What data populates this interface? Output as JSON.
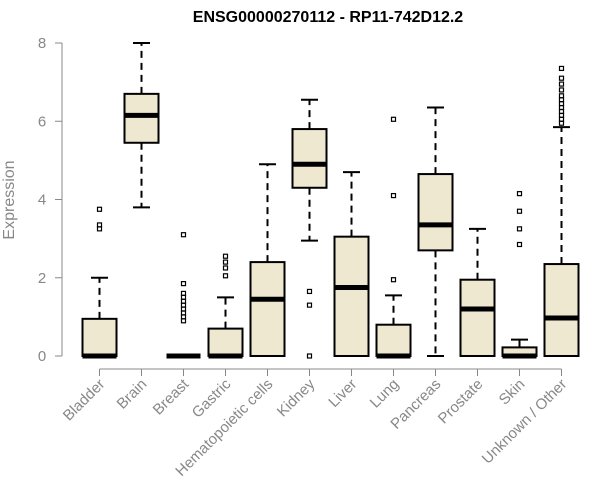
{
  "chart_data": {
    "type": "boxplot",
    "title": "ENSG00000270112 - RP11-742D12.2",
    "xlabel": "",
    "ylabel": "Expression",
    "ylim": [
      0,
      8
    ],
    "yticks": [
      0,
      2,
      4,
      6,
      8
    ],
    "grid": false,
    "colors": {
      "box_fill": "#efe8d0",
      "stroke": "#000000",
      "axis": "#888888"
    },
    "categories": [
      "Bladder",
      "Brain",
      "Breast",
      "Gastric",
      "Hematopoietic cells",
      "Kidney",
      "Liver",
      "Lung",
      "Pancreas",
      "Prostate",
      "Skin",
      "Unknown / Other"
    ],
    "boxes": [
      {
        "min": 0,
        "q1": 0,
        "median": 0,
        "q3": 0.95,
        "max": 2.0,
        "outliers": [
          3.25,
          3.35,
          3.75
        ]
      },
      {
        "min": 3.8,
        "q1": 5.45,
        "median": 6.15,
        "q3": 6.7,
        "max": 8.0,
        "outliers": []
      },
      {
        "min": 0,
        "q1": 0,
        "median": 0,
        "q3": 0,
        "max": 0,
        "outliers": [
          0.9,
          1.0,
          1.1,
          1.2,
          1.3,
          1.4,
          1.5,
          1.6,
          1.85,
          3.1
        ]
      },
      {
        "min": 0,
        "q1": 0,
        "median": 0,
        "q3": 0.7,
        "max": 1.5,
        "outliers": [
          2.05,
          2.25,
          2.4,
          2.55
        ]
      },
      {
        "min": 0,
        "q1": 0,
        "median": 1.45,
        "q3": 2.4,
        "max": 4.9,
        "outliers": []
      },
      {
        "min": 2.95,
        "q1": 4.3,
        "median": 4.9,
        "q3": 5.8,
        "max": 6.55,
        "outliers": [
          0,
          1.3,
          1.65
        ]
      },
      {
        "min": 0,
        "q1": 0,
        "median": 1.75,
        "q3": 3.05,
        "max": 4.7,
        "outliers": []
      },
      {
        "min": 0,
        "q1": 0,
        "median": 0,
        "q3": 0.8,
        "max": 1.55,
        "outliers": [
          1.95,
          4.1,
          6.05
        ]
      },
      {
        "min": 0,
        "q1": 2.7,
        "median": 3.35,
        "q3": 4.65,
        "max": 6.35,
        "outliers": []
      },
      {
        "min": 0,
        "q1": 0,
        "median": 1.2,
        "q3": 1.95,
        "max": 3.25,
        "outliers": []
      },
      {
        "min": 0,
        "q1": 0,
        "median": 0,
        "q3": 0.22,
        "max": 0.42,
        "outliers": [
          2.85,
          3.25,
          3.7,
          4.15
        ]
      },
      {
        "min": 0,
        "q1": 0,
        "median": 0.97,
        "q3": 2.35,
        "max": 5.85,
        "outliers": [
          5.95,
          6.05,
          6.15,
          6.25,
          6.35,
          6.45,
          6.55,
          6.65,
          6.8,
          6.95,
          7.1,
          7.35
        ]
      }
    ]
  }
}
